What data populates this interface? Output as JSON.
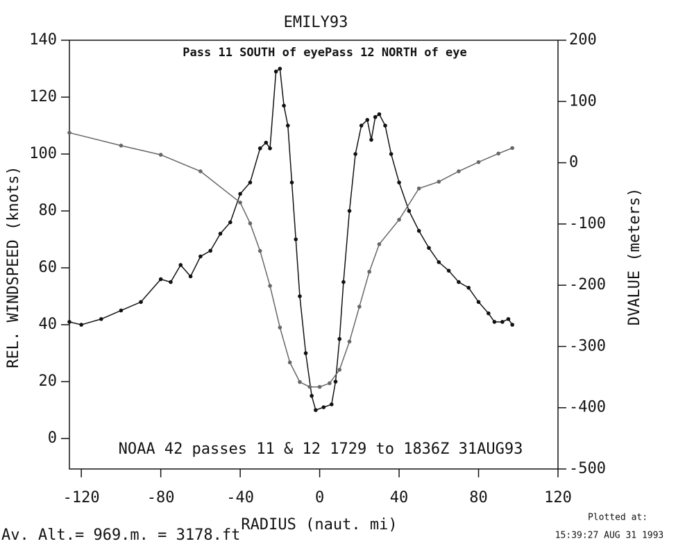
{
  "chart_data": {
    "type": "line",
    "title": "EMILY93",
    "subtitle": "Pass 11 SOUTH of eyePass 12 NORTH of eye",
    "annotation": "NOAA 42 passes 11 & 12   1729 to 1836Z 31AUG93",
    "x_label": "RADIUS (naut. mi)",
    "y_label": "REL. WINDSPEED (knots)",
    "y2_label": "DVALUE (meters)",
    "footer_left": "Av. Alt.=  969.m. =  3178.ft",
    "footer_right_1": "Plotted at:",
    "footer_right_2": "15:39:27 AUG 31 1993",
    "xlim": [
      -126,
      120
    ],
    "xticks": [
      -120,
      -80,
      -40,
      0,
      40,
      80,
      120
    ],
    "ylim": [
      -10.7,
      140
    ],
    "yticks": [
      0,
      20,
      40,
      60,
      80,
      100,
      120,
      140
    ],
    "y2lim": [
      -500,
      200
    ],
    "y2ticks": [
      -500,
      -400,
      -300,
      -200,
      -100,
      0,
      100,
      200
    ],
    "series": [
      {
        "name": "REL. WINDSPEED",
        "color": "#111111",
        "x": [
          -126,
          -120,
          -110,
          -100,
          -90,
          -80,
          -75,
          -70,
          -65,
          -60,
          -55,
          -50,
          -45,
          -40,
          -35,
          -30,
          -27,
          -25,
          -22,
          -20,
          -18,
          -16,
          -14,
          -12,
          -10,
          -7,
          -4,
          -2,
          2,
          6,
          8,
          10,
          12,
          15,
          18,
          21,
          24,
          26,
          28,
          30,
          33,
          36,
          40,
          45,
          50,
          55,
          60,
          65,
          70,
          75,
          80,
          85,
          88,
          92,
          95,
          97
        ],
        "values": [
          41,
          40,
          42,
          45,
          48,
          56,
          55,
          61,
          57,
          64,
          66,
          72,
          76,
          86,
          90,
          102,
          104,
          102,
          129,
          130,
          117,
          110,
          90,
          70,
          50,
          30,
          15,
          10,
          11,
          12,
          20,
          35,
          55,
          80,
          100,
          110,
          112,
          105,
          113,
          114,
          110,
          100,
          90,
          80,
          73,
          67,
          62,
          59,
          55,
          53,
          48,
          44,
          41,
          41,
          42,
          40
        ]
      },
      {
        "name": "DVALUE",
        "color": "#666666",
        "axis": "y2",
        "x": [
          -126,
          -100,
          -80,
          -60,
          -40,
          -35,
          -30,
          -25,
          -20,
          -15,
          -10,
          -5,
          0,
          5,
          10,
          15,
          20,
          25,
          30,
          40,
          50,
          60,
          70,
          80,
          90,
          97
        ],
        "values": [
          49,
          28,
          13,
          -14,
          -65,
          -99,
          -144,
          -201,
          -269,
          -326,
          -358,
          -366,
          -366,
          -360,
          -338,
          -292,
          -235,
          -178,
          -133,
          -93,
          -42,
          -31,
          -14,
          1,
          15,
          24
        ]
      }
    ]
  }
}
